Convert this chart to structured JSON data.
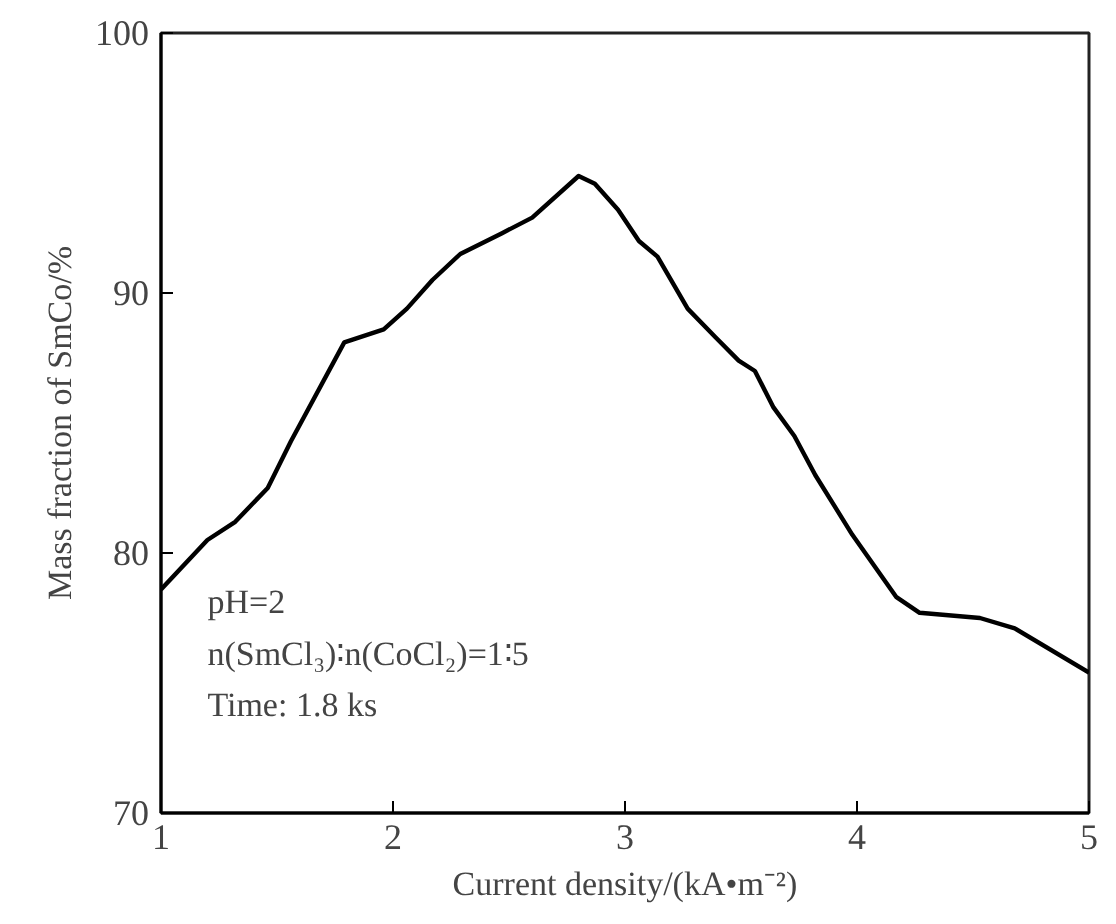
{
  "chart_data": {
    "type": "line",
    "xlabel": "Current density/(kA•m⁻²)",
    "ylabel": "Mass fraction of SmCo/%",
    "x": [
      1.0,
      1.2,
      1.32,
      1.46,
      1.56,
      1.79,
      1.96,
      2.06,
      2.17,
      2.29,
      2.47,
      2.6,
      2.8,
      2.87,
      2.97,
      3.06,
      3.14,
      3.27,
      3.39,
      3.49,
      3.56,
      3.64,
      3.73,
      3.82,
      3.98,
      4.17,
      4.27,
      4.53,
      4.68,
      5.0
    ],
    "series": [
      {
        "color": "#000000",
        "values": [
          78.6,
          80.5,
          81.2,
          82.5,
          84.3,
          88.1,
          88.6,
          89.4,
          90.5,
          91.5,
          92.3,
          92.9,
          94.5,
          94.2,
          93.2,
          92.0,
          91.4,
          89.4,
          88.3,
          87.4,
          87.0,
          85.6,
          84.5,
          83.0,
          80.7,
          78.3,
          77.7,
          77.5,
          77.1,
          75.4
        ]
      }
    ],
    "xlim": [
      1,
      5
    ],
    "ylim": [
      70,
      100
    ],
    "xticks": [
      1,
      2,
      3,
      4,
      5
    ],
    "yticks": [
      70,
      80,
      90,
      100
    ],
    "marker": "none",
    "line_style": "solid",
    "annotations": [
      "pH=2",
      "n(SmCl₃)∶n(CoCl₂)=1∶5",
      "Time: 1.8 ks"
    ]
  }
}
